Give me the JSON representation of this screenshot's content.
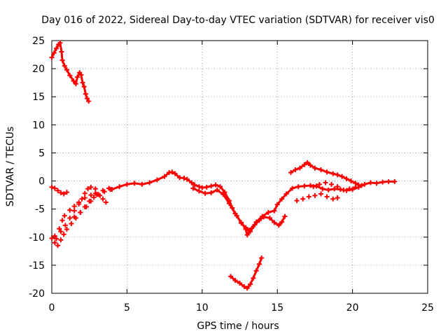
{
  "chart_data": {
    "type": "scatter",
    "title": "Day 016 of 2022, Sidereal Day-to-day VTEC variation (SDTVAR) for receiver vis0",
    "xlabel": "GPS time / hours",
    "ylabel": "SDTVAR / TECUs",
    "xlim": [
      0,
      25
    ],
    "ylim": [
      -20,
      25
    ],
    "x_ticks": [
      0,
      5,
      10,
      15,
      20,
      25
    ],
    "y_ticks": [
      -20,
      -15,
      -10,
      -5,
      0,
      5,
      10,
      15,
      20,
      25
    ],
    "grid": true,
    "marker": "plus",
    "series": [
      {
        "name": "high-early-arc",
        "color": "#ff0000",
        "points": [
          [
            0.0,
            22.0
          ],
          [
            0.15,
            22.8
          ],
          [
            0.3,
            23.6
          ],
          [
            0.45,
            24.3
          ],
          [
            0.55,
            24.6
          ],
          [
            0.65,
            23.0
          ],
          [
            0.7,
            21.5
          ],
          [
            0.85,
            20.5
          ],
          [
            1.0,
            19.8
          ],
          [
            1.2,
            18.8
          ],
          [
            1.45,
            17.8
          ],
          [
            1.6,
            17.3
          ],
          [
            1.7,
            18.5
          ],
          [
            1.85,
            19.3
          ],
          [
            1.95,
            18.9
          ],
          [
            2.05,
            17.5
          ],
          [
            2.15,
            16.8
          ],
          [
            2.25,
            15.5
          ],
          [
            2.35,
            14.7
          ],
          [
            2.45,
            14.2
          ]
        ]
      },
      {
        "name": "main-zero-band",
        "color": "#ff0000",
        "points": [
          [
            4.0,
            -1.5
          ],
          [
            4.5,
            -1.0
          ],
          [
            5.0,
            -0.6
          ],
          [
            5.5,
            -0.4
          ],
          [
            6.0,
            -0.6
          ],
          [
            6.5,
            -0.3
          ],
          [
            7.0,
            0.2
          ],
          [
            7.5,
            0.8
          ],
          [
            7.8,
            1.5
          ],
          [
            8.0,
            1.6
          ],
          [
            8.2,
            1.3
          ],
          [
            8.5,
            0.6
          ],
          [
            8.8,
            0.5
          ],
          [
            9.0,
            0.3
          ],
          [
            9.3,
            -0.3
          ],
          [
            9.5,
            -0.7
          ],
          [
            9.8,
            -1.0
          ],
          [
            10.0,
            -1.2
          ],
          [
            10.3,
            -1.1
          ],
          [
            10.6,
            -0.9
          ],
          [
            10.9,
            -0.7
          ],
          [
            11.2,
            -1.0
          ],
          [
            11.5,
            -2.0
          ],
          [
            11.8,
            -3.5
          ],
          [
            12.0,
            -4.8
          ],
          [
            12.3,
            -6.2
          ],
          [
            12.6,
            -7.5
          ],
          [
            12.9,
            -8.3
          ],
          [
            13.1,
            -8.8
          ],
          [
            13.3,
            -8.4
          ],
          [
            13.6,
            -7.3
          ],
          [
            14.0,
            -6.3
          ],
          [
            14.4,
            -5.6
          ],
          [
            14.8,
            -5.3
          ],
          [
            15.0,
            -4.2
          ],
          [
            15.3,
            -3.2
          ],
          [
            15.6,
            -2.3
          ],
          [
            16.0,
            -1.3
          ],
          [
            16.4,
            -1.0
          ],
          [
            16.8,
            -0.9
          ],
          [
            17.2,
            -0.8
          ],
          [
            17.6,
            -0.9
          ],
          [
            18.0,
            -1.4
          ],
          [
            18.4,
            -1.6
          ],
          [
            18.8,
            -1.4
          ],
          [
            19.2,
            -1.5
          ],
          [
            19.6,
            -1.7
          ],
          [
            20.0,
            -1.5
          ],
          [
            20.4,
            -1.1
          ],
          [
            20.8,
            -0.6
          ],
          [
            21.2,
            -0.3
          ],
          [
            21.6,
            -0.4
          ],
          [
            22.0,
            -0.2
          ],
          [
            22.4,
            -0.1
          ],
          [
            22.8,
            -0.1
          ]
        ]
      },
      {
        "name": "main-band-lower-branch",
        "color": "#ff0000",
        "points": [
          [
            9.4,
            -1.3
          ],
          [
            9.8,
            -1.8
          ],
          [
            10.2,
            -2.2
          ],
          [
            10.6,
            -2.1
          ],
          [
            11.0,
            -1.6
          ],
          [
            11.4,
            -2.4
          ],
          [
            11.8,
            -4.0
          ],
          [
            12.2,
            -5.8
          ],
          [
            12.6,
            -7.4
          ],
          [
            12.9,
            -8.6
          ],
          [
            13.0,
            -9.6
          ],
          [
            13.2,
            -9.0
          ],
          [
            13.5,
            -7.8
          ],
          [
            13.8,
            -7.0
          ],
          [
            14.1,
            -6.4
          ],
          [
            14.5,
            -6.6
          ],
          [
            14.8,
            -7.4
          ],
          [
            15.1,
            -7.9
          ],
          [
            15.3,
            -7.3
          ],
          [
            15.5,
            -6.3
          ]
        ]
      },
      {
        "name": "early-negative-arcs",
        "color": "#ff0000",
        "points": [
          [
            0.0,
            -1.1
          ],
          [
            0.2,
            -1.3
          ],
          [
            0.4,
            -1.7
          ],
          [
            0.6,
            -2.1
          ],
          [
            0.8,
            -2.3
          ],
          [
            1.0,
            -2.0
          ],
          [
            0.0,
            -10.2
          ],
          [
            0.2,
            -11.0
          ],
          [
            0.4,
            -11.5
          ],
          [
            0.6,
            -10.5
          ],
          [
            0.8,
            -9.5
          ],
          [
            1.0,
            -8.6
          ],
          [
            1.3,
            -7.6
          ],
          [
            1.6,
            -6.6
          ],
          [
            1.9,
            -5.6
          ],
          [
            2.2,
            -4.6
          ],
          [
            2.5,
            -3.6
          ],
          [
            2.8,
            -2.9
          ],
          [
            3.1,
            -2.4
          ],
          [
            3.5,
            -1.9
          ],
          [
            3.9,
            -1.5
          ]
        ]
      },
      {
        "name": "early-rising-arcs",
        "color": "#ff0000",
        "points": [
          [
            0.2,
            -9.8
          ],
          [
            0.5,
            -8.5
          ],
          [
            0.7,
            -7.0
          ],
          [
            0.85,
            -6.2
          ],
          [
            0.3,
            -10.3
          ],
          [
            0.6,
            -9.0
          ],
          [
            0.9,
            -7.9
          ],
          [
            1.2,
            -6.6
          ],
          [
            1.5,
            -5.3
          ],
          [
            1.8,
            -4.1
          ],
          [
            2.0,
            -3.2
          ],
          [
            2.2,
            -2.2
          ],
          [
            2.4,
            -1.4
          ],
          [
            2.6,
            -1.1
          ],
          [
            2.9,
            -1.4
          ],
          [
            1.2,
            -5.2
          ],
          [
            1.5,
            -4.5
          ],
          [
            1.8,
            -3.8
          ],
          [
            2.2,
            -3.0
          ],
          [
            2.6,
            -2.5
          ],
          [
            2.9,
            -2.2
          ],
          [
            3.2,
            -2.6
          ],
          [
            3.4,
            -3.2
          ],
          [
            3.6,
            -3.8
          ],
          [
            1.5,
            -6.4
          ],
          [
            1.9,
            -5.6
          ],
          [
            2.3,
            -4.6
          ],
          [
            2.6,
            -3.6
          ],
          [
            3.0,
            -2.4
          ],
          [
            3.4,
            -1.7
          ],
          [
            3.8,
            -1.3
          ]
        ]
      },
      {
        "name": "afternoon-upper-arc",
        "color": "#ff0000",
        "points": [
          [
            15.9,
            1.5
          ],
          [
            16.2,
            2.0
          ],
          [
            16.5,
            2.3
          ],
          [
            16.8,
            2.9
          ],
          [
            17.0,
            3.3
          ],
          [
            17.2,
            2.8
          ],
          [
            17.5,
            2.3
          ],
          [
            17.9,
            2.0
          ],
          [
            18.3,
            1.6
          ],
          [
            18.7,
            1.3
          ],
          [
            19.0,
            1.1
          ],
          [
            19.3,
            0.8
          ],
          [
            19.6,
            0.4
          ],
          [
            19.9,
            0.0
          ],
          [
            20.2,
            -0.4
          ],
          [
            20.4,
            -0.7
          ]
        ]
      },
      {
        "name": "afternoon-mid-arc",
        "color": "#ff0000",
        "points": [
          [
            17.4,
            -1.0
          ],
          [
            17.8,
            -0.6
          ],
          [
            18.2,
            -0.3
          ],
          [
            18.6,
            -0.6
          ],
          [
            19.0,
            -1.0
          ],
          [
            19.4,
            -1.6
          ],
          [
            19.8,
            -1.4
          ],
          [
            20.2,
            -1.1
          ],
          [
            20.6,
            -0.8
          ],
          [
            16.3,
            -3.5
          ],
          [
            16.7,
            -3.2
          ],
          [
            17.1,
            -2.8
          ],
          [
            17.5,
            -2.6
          ],
          [
            17.9,
            -2.3
          ],
          [
            18.3,
            -2.8
          ],
          [
            18.7,
            -3.2
          ],
          [
            19.0,
            -3.0
          ]
        ]
      },
      {
        "name": "deep-noon-arc",
        "color": "#ff0000",
        "points": [
          [
            11.9,
            -17.0
          ],
          [
            12.2,
            -17.7
          ],
          [
            12.5,
            -18.2
          ],
          [
            12.8,
            -18.8
          ],
          [
            13.0,
            -19.1
          ],
          [
            13.2,
            -18.4
          ],
          [
            13.4,
            -17.3
          ],
          [
            13.6,
            -16.0
          ],
          [
            13.8,
            -14.8
          ],
          [
            13.95,
            -13.7
          ]
        ]
      }
    ]
  }
}
